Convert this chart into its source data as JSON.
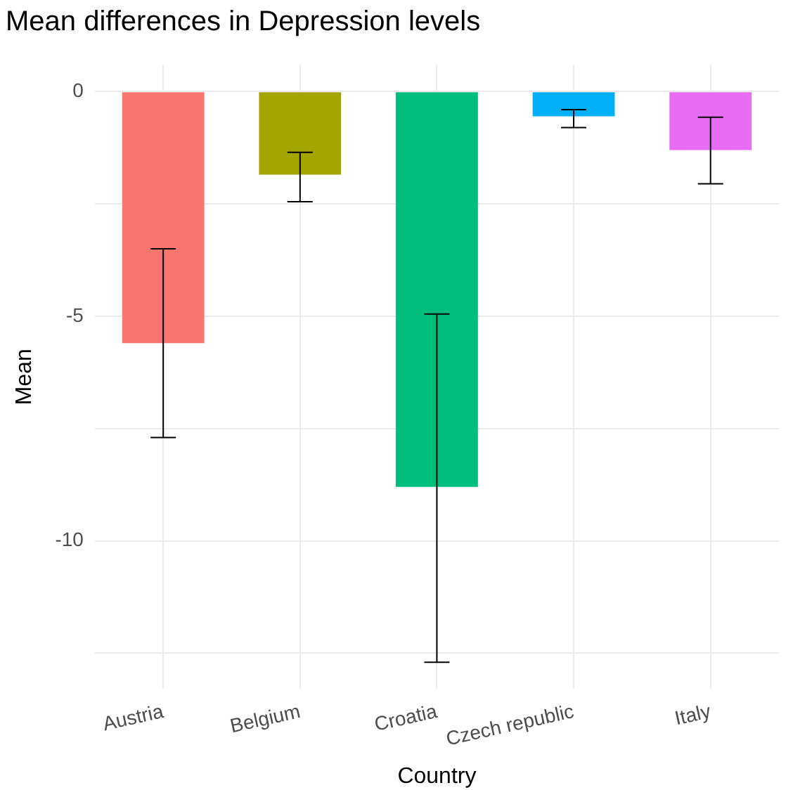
{
  "chart_data": {
    "type": "bar",
    "title": "Mean differences in Depression levels",
    "xlabel": "Country",
    "ylabel": "Mean",
    "categories": [
      "Austria",
      "Belgium",
      "Croatia",
      "Czech republic",
      "Italy"
    ],
    "values": [
      -5.6,
      -1.85,
      -8.8,
      -0.55,
      -1.3
    ],
    "colors": [
      "#f8766d",
      "#a3a500",
      "#00bf7d",
      "#00b0f6",
      "#e76bf3"
    ],
    "errors": [
      [
        -7.7,
        -3.5
      ],
      [
        -2.45,
        -1.35
      ],
      [
        -12.7,
        -4.95
      ],
      [
        -0.8,
        -0.4
      ],
      [
        -2.05,
        -0.57
      ]
    ],
    "ylim": [
      -13.3,
      0.6
    ],
    "yticks": [
      {
        "value": -12.5,
        "label": null
      },
      {
        "value": -10,
        "label": "-10"
      },
      {
        "value": -7.5,
        "label": null
      },
      {
        "value": -5,
        "label": "-5"
      },
      {
        "value": -2.5,
        "label": null
      },
      0
    ],
    "grid": true,
    "legend": false
  }
}
